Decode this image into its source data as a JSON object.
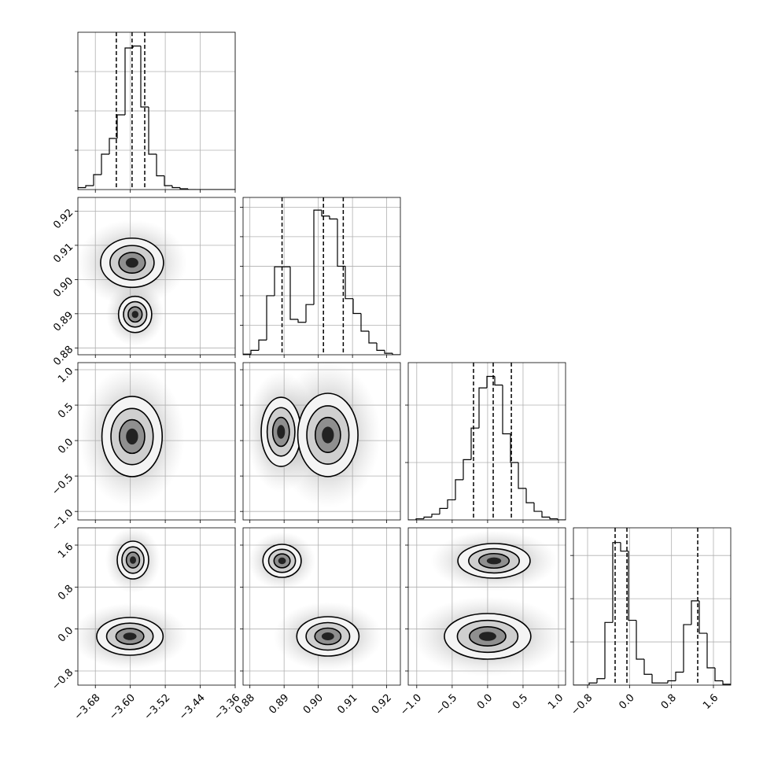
{
  "chart_data": {
    "type": "corner",
    "color": "#000000",
    "grid": true,
    "params": [
      {
        "lim": [
          -3.72,
          -3.36
        ],
        "ticks": [
          {
            "value": -3.68,
            "label": "−3.68"
          },
          {
            "value": -3.6,
            "label": "−3.60"
          },
          {
            "value": -3.52,
            "label": "−3.52"
          },
          {
            "value": -3.44,
            "label": "−3.44"
          },
          {
            "value": -3.36,
            "label": "−3.36"
          }
        ],
        "quantiles": [
          -3.632,
          -3.596,
          -3.567
        ],
        "hist": {
          "bins": [
            -3.72,
            -3.702,
            -3.684,
            -3.666,
            -3.648,
            -3.63,
            -3.612,
            -3.594,
            -3.576,
            -3.558,
            -3.54,
            -3.522,
            -3.504,
            -3.486,
            -3.468,
            -3.45,
            -3.432,
            -3.414,
            -3.396,
            -3.378,
            -3.36
          ],
          "counts": [
            0.05,
            0.1,
            0.38,
            0.9,
            1.3,
            1.9,
            3.6,
            3.65,
            2.1,
            0.9,
            0.35,
            0.1,
            0.05,
            0.02,
            0,
            0,
            0,
            0,
            0,
            0
          ],
          "ylim": [
            0,
            4
          ],
          "yticks": [
            1,
            2,
            3
          ]
        }
      },
      {
        "lim": [
          0.878,
          0.924
        ],
        "ticks": [
          0.88,
          0.89,
          {
            "value": 0.9,
            "label": "0.90"
          },
          0.91,
          0.92
        ],
        "quantiles": [
          0.8894,
          0.9015,
          0.9073
        ],
        "hist": {
          "bins": [
            0.878,
            0.8803,
            0.8826,
            0.8849,
            0.8872,
            0.8895,
            0.8918,
            0.8941,
            0.8964,
            0.8987,
            0.901,
            0.9033,
            0.9056,
            0.9079,
            0.9102,
            0.9125,
            0.9148,
            0.9171,
            0.9194,
            0.9217,
            0.924
          ],
          "counts": [
            0.02,
            0.15,
            0.5,
            2.0,
            2.98,
            2.98,
            1.2,
            1.1,
            1.7,
            4.9,
            4.7,
            4.6,
            3.0,
            1.9,
            1.4,
            0.8,
            0.4,
            0.15,
            0.05,
            0
          ],
          "ylim": [
            0,
            5.33
          ],
          "yticks": [
            1,
            2,
            3,
            4,
            5
          ]
        }
      },
      {
        "lim": [
          -1.12,
          1.1
        ],
        "ticks": [
          {
            "value": -1.0,
            "label": "−1.0"
          },
          {
            "value": -0.5,
            "label": "−0.5"
          },
          {
            "value": 0.0,
            "label": "0.0"
          },
          0.5,
          {
            "value": 1.0,
            "label": "1.0"
          }
        ],
        "quantiles": [
          -0.199,
          0.079,
          0.335
        ],
        "hist": {
          "bins": [
            -1.12,
            -1.009,
            -0.898,
            -0.787,
            -0.676,
            -0.565,
            -0.454,
            -0.343,
            -0.232,
            -0.121,
            -0.01,
            0.101,
            0.212,
            0.323,
            0.434,
            0.545,
            0.656,
            0.767,
            0.878,
            0.989,
            1.1
          ],
          "counts": [
            0,
            0.02,
            0.05,
            0.1,
            0.2,
            0.35,
            0.7,
            1.05,
            1.6,
            2.3,
            2.5,
            2.35,
            1.5,
            1.0,
            0.55,
            0.3,
            0.15,
            0.05,
            0.02,
            0
          ],
          "ylim": [
            0,
            2.74
          ],
          "yticks": [
            1,
            2
          ]
        }
      },
      {
        "lim": [
          -1.07,
          1.93
        ],
        "ticks": [
          {
            "value": -0.8,
            "label": "−0.8"
          },
          {
            "value": 0.0,
            "label": "0.0"
          },
          0.8,
          1.6
        ],
        "quantiles": [
          -0.275,
          -0.05,
          1.3
        ],
        "hist": {
          "bins": [
            -1.07,
            -0.92,
            -0.77,
            -0.62,
            -0.47,
            -0.32,
            -0.17,
            -0.02,
            0.13,
            0.28,
            0.43,
            0.58,
            0.73,
            0.88,
            1.03,
            1.18,
            1.33,
            1.48,
            1.63,
            1.78,
            1.93
          ],
          "counts": [
            0,
            0,
            0.05,
            0.15,
            1.45,
            3.3,
            3.1,
            1.5,
            0.6,
            0.25,
            0.05,
            0.05,
            0.1,
            0.3,
            1.4,
            1.95,
            1.2,
            0.4,
            0.1,
            0.02
          ],
          "ylim": [
            0,
            3.64
          ],
          "yticks": [
            1,
            2,
            3
          ]
        }
      }
    ],
    "pairs": [
      {
        "x_param": 0,
        "y_param": 1,
        "blobs": [
          {
            "x": -3.596,
            "y": 0.9049,
            "rx": 0.072,
            "ry": 0.0072
          },
          {
            "x": -3.589,
            "y": 0.8898,
            "rx": 0.038,
            "ry": 0.0053
          }
        ]
      },
      {
        "x_param": 0,
        "y_param": 2,
        "blobs": [
          {
            "x": -3.596,
            "y": 0.057,
            "rx": 0.069,
            "ry": 0.566
          }
        ]
      },
      {
        "x_param": 1,
        "y_param": 2,
        "blobs": [
          {
            "x": 0.8891,
            "y": 0.123,
            "rx": 0.0058,
            "ry": 0.488
          },
          {
            "x": 0.9028,
            "y": 0.079,
            "rx": 0.0088,
            "ry": 0.588
          }
        ]
      },
      {
        "x_param": 0,
        "y_param": 3,
        "blobs": [
          {
            "x": -3.594,
            "y": 1.315,
            "rx": 0.036,
            "ry": 0.36
          },
          {
            "x": -3.601,
            "y": -0.14,
            "rx": 0.076,
            "ry": 0.36
          }
        ]
      },
      {
        "x_param": 1,
        "y_param": 3,
        "blobs": [
          {
            "x": 0.8894,
            "y": 1.3,
            "rx": 0.0056,
            "ry": 0.315
          },
          {
            "x": 0.9028,
            "y": -0.14,
            "rx": 0.0091,
            "ry": 0.375
          }
        ]
      },
      {
        "x_param": 2,
        "y_param": 3,
        "blobs": [
          {
            "x": 0.09,
            "y": 1.3,
            "rx": 0.51,
            "ry": 0.33
          },
          {
            "x": 0.0,
            "y": -0.14,
            "rx": 0.61,
            "ry": 0.435
          }
        ]
      }
    ]
  }
}
